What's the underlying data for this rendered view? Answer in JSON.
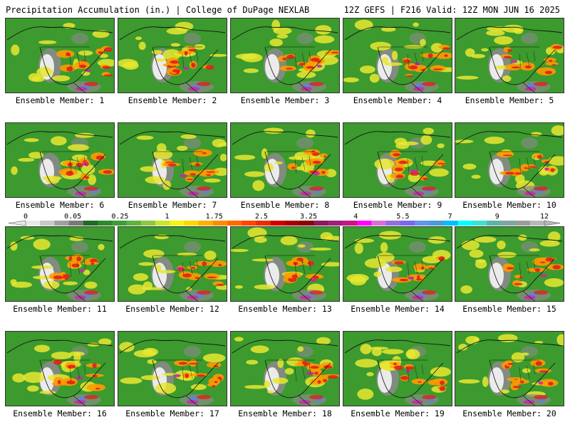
{
  "header": {
    "title_left": "Precipitation Accumulation (in.) | College of DuPage NEXLAB",
    "title_right": "12Z GEFS | F216 Valid: 12Z MON JUN 16 2025"
  },
  "colorbar": {
    "labels": [
      "0",
      "0.05",
      "0.25",
      "1",
      "1.75",
      "2.5",
      "3.25",
      "4",
      "5.5",
      "7",
      "9",
      "12"
    ],
    "colors": [
      "#e8e8e8",
      "#c8c8c8",
      "#a0a0a0",
      "#7a7a7a",
      "#1f6b1f",
      "#2c8a2a",
      "#3e9e35",
      "#5fb33e",
      "#8ec940",
      "#c8e632",
      "#f5f50f",
      "#ffd700",
      "#ffb000",
      "#ff8c00",
      "#ff6a00",
      "#ff4500",
      "#e62e00",
      "#cc0000",
      "#a80000",
      "#8b0000",
      "#8b1a5c",
      "#a0207a",
      "#c71585",
      "#ff00ff",
      "#da70d6",
      "#9370db",
      "#7b68ee",
      "#6495ed",
      "#4a9bd8",
      "#00bfff",
      "#00ffff",
      "#40e0d0",
      "#5fb3a8",
      "#7fa6a0",
      "#9c9c9c",
      "#b8b8b8"
    ]
  },
  "palette": {
    "background": "#3c9a2e",
    "dry": "#f0f0f0",
    "light": "#8a8a8a",
    "yellow": "#e8e830",
    "orange": "#ff9a00",
    "red": "#e0201a",
    "magenta": "#d020b0",
    "blue": "#6080e0",
    "borders": "#111111"
  },
  "members": [
    {
      "label": "Ensemble Member: 1"
    },
    {
      "label": "Ensemble Member: 2"
    },
    {
      "label": "Ensemble Member: 3"
    },
    {
      "label": "Ensemble Member: 4"
    },
    {
      "label": "Ensemble Member: 5"
    },
    {
      "label": "Ensemble Member: 6"
    },
    {
      "label": "Ensemble Member: 7"
    },
    {
      "label": "Ensemble Member: 8"
    },
    {
      "label": "Ensemble Member: 9"
    },
    {
      "label": "Ensemble Member: 10"
    },
    {
      "label": "Ensemble Member: 11"
    },
    {
      "label": "Ensemble Member: 12"
    },
    {
      "label": "Ensemble Member: 13"
    },
    {
      "label": "Ensemble Member: 14"
    },
    {
      "label": "Ensemble Member: 15"
    },
    {
      "label": "Ensemble Member: 16"
    },
    {
      "label": "Ensemble Member: 17"
    },
    {
      "label": "Ensemble Member: 18"
    },
    {
      "label": "Ensemble Member: 19"
    },
    {
      "label": "Ensemble Member: 20"
    }
  ]
}
